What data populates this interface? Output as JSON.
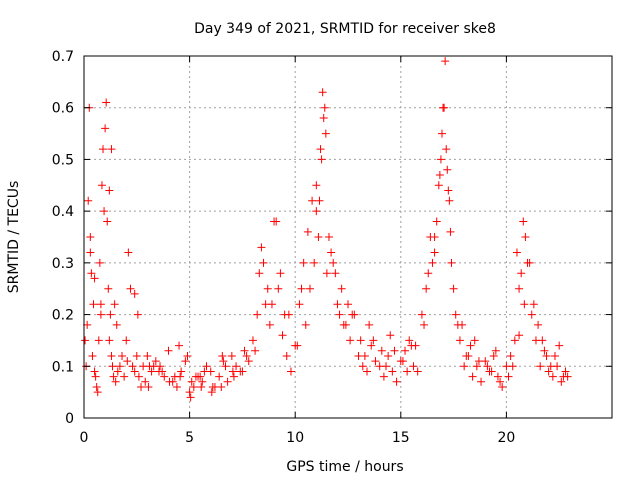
{
  "chart_data": {
    "type": "scatter",
    "title": "Day 349 of 2021, SRMTID for receiver ske8",
    "xlabel": "GPS time / hours",
    "ylabel": "SRMTID / TECUs",
    "xlim": [
      0,
      25
    ],
    "ylim": [
      0,
      0.7
    ],
    "xticks": [
      0,
      5,
      10,
      15,
      20
    ],
    "yticks": [
      0,
      0.1,
      0.2,
      0.3,
      0.4,
      0.5,
      0.6,
      0.7
    ],
    "xtick_labels": [
      "0",
      "5",
      "10",
      "15",
      "20"
    ],
    "ytick_labels": [
      "0",
      "0.1",
      "0.2",
      "0.3",
      "0.4",
      "0.5",
      "0.6",
      "0.7"
    ],
    "grid": true,
    "marker": "+",
    "series": [
      {
        "name": "SRMTID",
        "color": "#ff0000",
        "x": [
          0.05,
          0.1,
          0.15,
          0.2,
          0.25,
          0.3,
          0.35,
          0.4,
          0.45,
          0.5,
          0.55,
          0.6,
          0.65,
          0.7,
          0.75,
          0.8,
          0.85,
          0.9,
          0.95,
          1.0,
          1.05,
          1.1,
          1.15,
          1.2,
          1.25,
          1.3,
          1.35,
          1.4,
          1.5,
          1.6,
          1.7,
          1.8,
          1.9,
          2.0,
          2.1,
          2.2,
          2.3,
          2.4,
          2.5,
          2.6,
          2.7,
          2.8,
          2.9,
          3.0,
          3.2,
          3.4,
          3.6,
          3.8,
          4.0,
          4.2,
          4.4,
          4.6,
          4.8,
          5.0,
          5.2,
          5.4,
          5.6,
          5.8,
          6.0,
          6.2,
          6.4,
          6.6,
          6.8,
          7.0,
          7.2,
          7.4,
          7.6,
          7.8,
          8.0,
          8.2,
          8.4,
          8.6,
          8.8,
          9.0,
          9.2,
          9.4,
          9.6,
          9.8,
          10.0,
          10.2,
          10.4,
          10.6,
          10.8,
          11.0,
          11.1,
          11.2,
          11.3,
          11.4,
          11.6,
          11.8,
          12.0,
          12.2,
          12.4,
          12.6,
          12.8,
          13.0,
          13.2,
          13.4,
          13.6,
          13.8,
          14.0,
          14.2,
          14.4,
          14.6,
          14.8,
          15.0,
          15.2,
          15.4,
          15.6,
          15.8,
          16.0,
          16.2,
          16.4,
          16.6,
          16.8,
          16.9,
          17.0,
          17.1,
          17.2,
          17.3,
          17.4,
          17.6,
          17.8,
          18.0,
          18.2,
          18.4,
          18.6,
          18.8,
          19.0,
          19.2,
          19.4,
          19.6,
          19.8,
          20.0,
          20.2,
          20.4,
          20.6,
          20.8,
          20.9,
          21.0,
          21.2,
          21.4,
          21.6,
          21.8,
          22.0,
          22.2,
          22.4,
          22.6,
          22.8,
          0.3,
          0.5,
          0.8,
          1.2,
          1.3,
          2.4,
          3.3,
          4.5,
          5.5,
          6.5,
          7.5,
          8.3,
          8.9,
          9.1,
          9.5,
          10.5,
          10.7,
          10.9,
          11.0,
          11.15,
          11.25,
          11.5,
          11.7,
          12.1,
          12.5,
          13.1,
          13.5,
          14.1,
          14.5,
          15.1,
          15.5,
          16.1,
          16.5,
          16.7,
          16.85,
          16.95,
          17.05,
          17.15,
          17.25,
          17.5,
          17.7,
          18.1,
          18.5,
          19.1,
          19.5,
          20.1,
          20.5,
          20.7,
          20.85,
          21.1,
          21.5,
          21.9,
          22.1,
          22.5,
          22.7,
          3.1,
          3.7,
          4.3,
          4.9,
          5.1,
          5.3,
          5.7,
          6.1,
          6.7,
          7.1,
          7.7,
          8.1,
          8.5,
          8.7,
          9.3,
          9.7,
          10.1,
          10.3,
          11.35,
          11.45,
          11.9,
          12.3,
          12.7,
          13.3,
          13.7,
          14.3,
          14.7,
          15.3,
          15.7,
          16.3,
          16.6,
          17.35,
          17.9,
          18.3,
          18.7,
          19.3,
          19.7,
          20.3,
          20.6,
          21.3,
          21.7,
          22.3,
          22.9,
          1.45,
          1.55,
          2.05,
          2.55,
          3.05,
          3.55,
          4.05,
          4.55,
          5.05,
          5.55,
          6.05,
          6.55,
          7.05
        ],
        "y": [
          0.15,
          0.1,
          0.18,
          0.42,
          0.6,
          0.32,
          0.28,
          0.12,
          0.22,
          0.09,
          0.08,
          0.06,
          0.05,
          0.15,
          0.3,
          0.2,
          0.45,
          0.52,
          0.4,
          0.56,
          0.61,
          0.38,
          0.25,
          0.15,
          0.2,
          0.12,
          0.1,
          0.08,
          0.07,
          0.09,
          0.1,
          0.12,
          0.08,
          0.15,
          0.32,
          0.25,
          0.1,
          0.09,
          0.12,
          0.08,
          0.06,
          0.1,
          0.07,
          0.12,
          0.09,
          0.11,
          0.1,
          0.08,
          0.13,
          0.07,
          0.06,
          0.09,
          0.11,
          0.05,
          0.06,
          0.08,
          0.07,
          0.1,
          0.09,
          0.06,
          0.08,
          0.11,
          0.07,
          0.12,
          0.1,
          0.09,
          0.13,
          0.11,
          0.15,
          0.2,
          0.33,
          0.22,
          0.18,
          0.38,
          0.25,
          0.16,
          0.12,
          0.09,
          0.14,
          0.22,
          0.3,
          0.36,
          0.42,
          0.45,
          0.35,
          0.52,
          0.63,
          0.6,
          0.35,
          0.3,
          0.22,
          0.25,
          0.18,
          0.15,
          0.2,
          0.12,
          0.1,
          0.09,
          0.14,
          0.11,
          0.1,
          0.08,
          0.12,
          0.09,
          0.07,
          0.11,
          0.13,
          0.15,
          0.1,
          0.09,
          0.2,
          0.25,
          0.35,
          0.32,
          0.45,
          0.5,
          0.6,
          0.69,
          0.48,
          0.42,
          0.3,
          0.2,
          0.15,
          0.1,
          0.12,
          0.08,
          0.1,
          0.07,
          0.11,
          0.09,
          0.12,
          0.08,
          0.06,
          0.1,
          0.12,
          0.15,
          0.25,
          0.38,
          0.35,
          0.3,
          0.2,
          0.15,
          0.1,
          0.13,
          0.09,
          0.08,
          0.1,
          0.07,
          0.09,
          0.35,
          0.27,
          0.22,
          0.44,
          0.52,
          0.24,
          0.1,
          0.14,
          0.08,
          0.06,
          0.09,
          0.28,
          0.22,
          0.38,
          0.2,
          0.18,
          0.25,
          0.3,
          0.4,
          0.42,
          0.5,
          0.28,
          0.32,
          0.2,
          0.22,
          0.15,
          0.18,
          0.13,
          0.16,
          0.11,
          0.14,
          0.18,
          0.3,
          0.38,
          0.47,
          0.55,
          0.6,
          0.52,
          0.44,
          0.25,
          0.18,
          0.12,
          0.15,
          0.1,
          0.13,
          0.08,
          0.32,
          0.28,
          0.22,
          0.3,
          0.18,
          0.12,
          0.1,
          0.14,
          0.08,
          0.1,
          0.09,
          0.08,
          0.12,
          0.07,
          0.08,
          0.09,
          0.06,
          0.1,
          0.08,
          0.12,
          0.13,
          0.3,
          0.25,
          0.28,
          0.2,
          0.14,
          0.25,
          0.58,
          0.55,
          0.28,
          0.18,
          0.2,
          0.12,
          0.15,
          0.1,
          0.13,
          0.09,
          0.14,
          0.28,
          0.35,
          0.36,
          0.18,
          0.14,
          0.11,
          0.09,
          0.07,
          0.1,
          0.16,
          0.22,
          0.15,
          0.12,
          0.08,
          0.22,
          0.18,
          0.11,
          0.2,
          0.06,
          0.09,
          0.07,
          0.08,
          0.04,
          0.06,
          0.05,
          0.12,
          0.09
        ]
      }
    ]
  }
}
